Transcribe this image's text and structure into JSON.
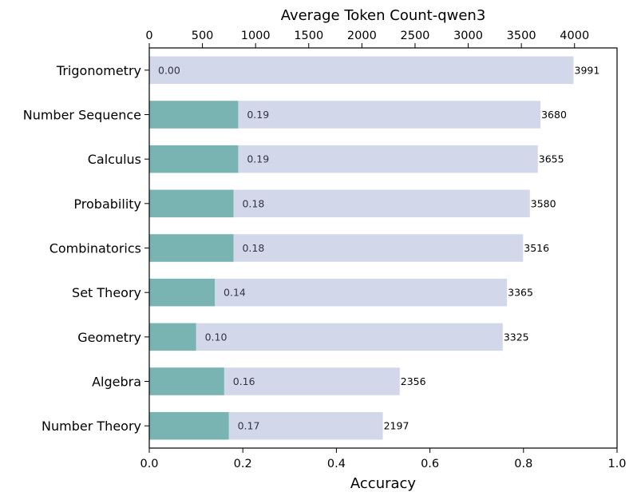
{
  "chart_data": {
    "type": "bar",
    "orientation": "horizontal",
    "categories": [
      "Trigonometry",
      "Number Sequence",
      "Calculus",
      "Probability",
      "Combinatorics",
      "Set Theory",
      "Geometry",
      "Algebra",
      "Number Theory"
    ],
    "series": [
      {
        "axis": "bottom",
        "values": [
          0.0,
          0.19,
          0.19,
          0.18,
          0.18,
          0.14,
          0.1,
          0.16,
          0.17
        ],
        "labels": [
          "0.00",
          "0.19",
          "0.19",
          "0.18",
          "0.18",
          "0.14",
          "0.10",
          "0.16",
          "0.17"
        ],
        "color": "#7ab4b2"
      },
      {
        "axis": "top",
        "values": [
          3991,
          3680,
          3655,
          3580,
          3516,
          3365,
          3325,
          2356,
          2197
        ],
        "labels": [
          "3991",
          "3680",
          "3655",
          "3580",
          "3516",
          "3365",
          "3325",
          "2356",
          "2197"
        ],
        "color": "#d2d8ea"
      }
    ],
    "xlabel": "Accuracy",
    "x2label": "Average Token Count-qwen3",
    "xlim": [
      0,
      1.0
    ],
    "x2lim": [
      0,
      4400
    ],
    "xticks": [
      "0.0",
      "0.2",
      "0.4",
      "0.6",
      "0.8",
      "1.0"
    ],
    "x2ticks": [
      "0",
      "500",
      "1000",
      "1500",
      "2000",
      "2500",
      "3000",
      "3500",
      "4000"
    ],
    "grid": false
  }
}
